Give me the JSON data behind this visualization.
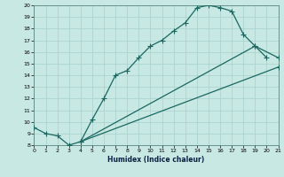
{
  "xlabel": "Humidex (Indice chaleur)",
  "bg_color": "#c8e8e4",
  "grid_color": "#a8d0cc",
  "line_color": "#1a6860",
  "xlim": [
    0,
    21
  ],
  "ylim": [
    8,
    20
  ],
  "xticks": [
    0,
    1,
    2,
    3,
    4,
    5,
    6,
    7,
    8,
    9,
    10,
    11,
    12,
    13,
    14,
    15,
    16,
    17,
    18,
    19,
    20,
    21
  ],
  "yticks": [
    8,
    9,
    10,
    11,
    12,
    13,
    14,
    15,
    16,
    17,
    18,
    19,
    20
  ],
  "curve1_x": [
    0,
    1,
    2,
    3,
    4,
    5,
    6,
    7,
    8,
    9,
    10,
    11,
    12,
    13,
    14,
    15,
    16,
    17,
    18,
    19,
    20
  ],
  "curve1_y": [
    9.5,
    9.0,
    8.8,
    8.0,
    8.3,
    10.2,
    12.0,
    14.0,
    14.4,
    15.5,
    16.5,
    17.0,
    17.8,
    18.5,
    19.8,
    20.0,
    19.8,
    19.5,
    17.5,
    16.5,
    15.5
  ],
  "curve2_x": [
    4,
    21
  ],
  "curve2_y": [
    8.3,
    14.7
  ],
  "curve3_x": [
    4,
    19,
    21
  ],
  "curve3_y": [
    8.3,
    16.5,
    15.5
  ],
  "marker_style": "+",
  "marker_size": 4,
  "lw": 0.9
}
